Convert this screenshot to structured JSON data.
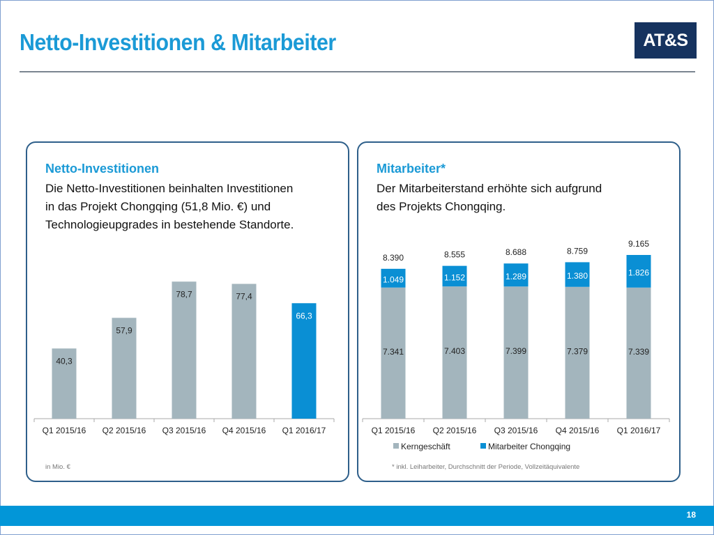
{
  "page": {
    "title": "Netto-Investitionen & Mitarbeiter",
    "logo": "AT&S",
    "page_number": "18",
    "colors": {
      "title_blue": "#1b9ad6",
      "gray_bar": "#a3b5bd",
      "blue_bar": "#0a8fd4",
      "logo_bg": "#16335f",
      "footer_blue": "#0296d8"
    }
  },
  "left_panel": {
    "heading": "Netto-Investitionen",
    "text_lines": [
      "Die Netto-Investitionen beinhalten Investitionen",
      "in das Projekt Chongqing (51,8 Mio. €) und",
      "Technologieupgrades in bestehende Standorte."
    ],
    "note": "in Mio. €"
  },
  "right_panel": {
    "heading": "Mitarbeiter*",
    "text_lines": [
      "Der Mitarbeiterstand erhöhte sich aufgrund",
      "des Projekts Chongqing."
    ],
    "note": "* inkl. Leiharbeiter, Durchschnitt der Periode, Vollzeitäquivalente"
  },
  "chart_data": [
    {
      "type": "bar",
      "title": "Netto-Investitionen",
      "unit": "in Mio. €",
      "categories": [
        "Q1 2015/16",
        "Q2 2015/16",
        "Q3 2015/16",
        "Q4 2015/16",
        "Q1 2016/17"
      ],
      "values": [
        40.3,
        57.9,
        78.7,
        77.4,
        66.3
      ],
      "labels": [
        "40,3",
        "57,9",
        "78,7",
        "77,4",
        "66,3"
      ],
      "highlight_index": 4,
      "xlabel": "",
      "ylabel": "",
      "ylim": [
        0,
        80
      ],
      "grid": false
    },
    {
      "type": "bar",
      "stacked": true,
      "title": "Mitarbeiter*",
      "categories": [
        "Q1 2015/16",
        "Q2 2015/16",
        "Q3 2015/16",
        "Q4 2015/16",
        "Q1 2016/17"
      ],
      "series": [
        {
          "name": "Kerngeschäft",
          "values": [
            7341,
            7403,
            7399,
            7379,
            7339
          ],
          "labels": [
            "7.341",
            "7.403",
            "7.399",
            "7.379",
            "7.339"
          ]
        },
        {
          "name": "Mitarbeiter Chongqing",
          "values": [
            1049,
            1152,
            1289,
            1380,
            1826
          ],
          "labels": [
            "1.049",
            "1.152",
            "1.289",
            "1.380",
            "1.826"
          ]
        }
      ],
      "totals": [
        8390,
        8555,
        8688,
        8759,
        9165
      ],
      "total_labels": [
        "8.390",
        "8.555",
        "8.688",
        "8.759",
        "9.165"
      ],
      "legend": [
        "Kerngeschäft",
        "Mitarbeiter Chongqing"
      ],
      "legend_position": "bottom",
      "xlabel": "",
      "ylabel": "",
      "ylim": [
        0,
        9400
      ],
      "grid": false
    }
  ]
}
